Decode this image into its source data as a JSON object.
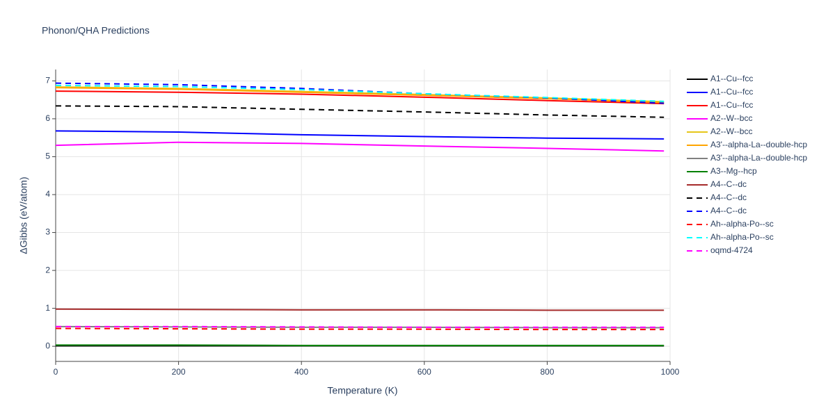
{
  "chart_data": {
    "type": "line",
    "title": "Phonon/QHA Predictions",
    "x_label": "Temperature (K)",
    "y_label": "ΔGibbs (eV/atom)",
    "x": [
      0,
      200,
      400,
      600,
      800,
      990
    ],
    "xlim": [
      0,
      1000
    ],
    "xticks": [
      0,
      200,
      400,
      600,
      800,
      1000
    ],
    "ylim": [
      -0.4,
      7.3
    ],
    "yticks": [
      0,
      1,
      2,
      3,
      4,
      5,
      6,
      7
    ],
    "grid": true,
    "legend": "right",
    "series": [
      {
        "name": "A1--Cu--fcc",
        "color": "#000000",
        "dash": false,
        "values": [
          0.01,
          0.01,
          0.01,
          0.01,
          0.01,
          0.01
        ]
      },
      {
        "name": "A1--Cu--fcc",
        "color": "#0000ff",
        "dash": false,
        "values": [
          5.68,
          5.65,
          5.58,
          5.53,
          5.49,
          5.47
        ]
      },
      {
        "name": "A1--Cu--fcc",
        "color": "#ff0000",
        "dash": false,
        "values": [
          6.73,
          6.7,
          6.65,
          6.57,
          6.48,
          6.4
        ]
      },
      {
        "name": "A2--W--bcc",
        "color": "#ff00ff",
        "dash": false,
        "values": [
          5.3,
          5.38,
          5.35,
          5.28,
          5.22,
          5.15
        ]
      },
      {
        "name": "A2--W--bcc",
        "color": "#e6c619",
        "dash": false,
        "values": [
          6.84,
          6.8,
          6.72,
          6.64,
          6.55,
          6.45
        ]
      },
      {
        "name": "A3'--alpha-La--double-hcp",
        "color": "#ffa500",
        "dash": false,
        "values": [
          6.82,
          6.78,
          6.7,
          6.62,
          6.53,
          6.43
        ]
      },
      {
        "name": "A3'--alpha-La--double-hcp",
        "color": "#808080",
        "dash": false,
        "values": [
          0.52,
          0.51,
          0.5,
          0.5,
          0.49,
          0.49
        ]
      },
      {
        "name": "A3--Mg--hcp",
        "color": "#008000",
        "dash": false,
        "values": [
          0.03,
          0.03,
          0.02,
          0.02,
          0.02,
          0.02
        ]
      },
      {
        "name": "A4--C--dc",
        "color": "#a52a2a",
        "dash": false,
        "values": [
          0.98,
          0.97,
          0.96,
          0.96,
          0.95,
          0.95
        ]
      },
      {
        "name": "A4--C--dc",
        "color": "#000000",
        "dash": true,
        "values": [
          6.34,
          6.32,
          6.25,
          6.18,
          6.1,
          6.04
        ]
      },
      {
        "name": "A4--C--dc",
        "color": "#0000ff",
        "dash": true,
        "values": [
          6.94,
          6.9,
          6.8,
          6.66,
          6.55,
          6.41
        ]
      },
      {
        "name": "Ah--alpha-Po--sc",
        "color": "#ff0000",
        "dash": true,
        "values": [
          0.47,
          0.46,
          0.45,
          0.45,
          0.44,
          0.44
        ]
      },
      {
        "name": "Ah--alpha-Po--sc",
        "color": "#00ffff",
        "dash": true,
        "values": [
          6.88,
          6.85,
          6.77,
          6.66,
          6.56,
          6.46
        ]
      },
      {
        "name": "oqmd-4724",
        "color": "#ff00ff",
        "dash": true,
        "values": [
          0.52,
          0.52,
          0.51,
          0.5,
          0.5,
          0.5
        ]
      }
    ]
  }
}
